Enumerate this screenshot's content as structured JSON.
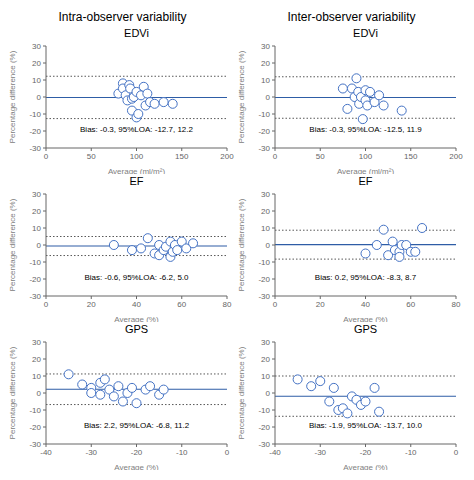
{
  "column_titles": [
    "Intra-observer variability",
    "Inter-observer variability"
  ],
  "chart_data": [
    {
      "type": "scatter",
      "title": "EDVi",
      "xlabel": "Average (ml/m²)",
      "ylabel": "Percentage difference (%)",
      "xlim": [
        0,
        200
      ],
      "ylim": [
        -30,
        30
      ],
      "xticks": [
        0,
        50,
        100,
        150,
        200
      ],
      "yticks": [
        -30,
        -20,
        -10,
        0,
        10,
        20,
        30
      ],
      "grid": false,
      "color": "#4472C4",
      "marker": "circle",
      "annotation": "Bias: -0.3, 95%LOA: -12.7, 12.2",
      "hlines": [
        {
          "value": -0.3,
          "color": "#2E5DA6",
          "line_style": "solid"
        },
        {
          "value": -12.7,
          "color": "#444444",
          "line_style": "dotted"
        },
        {
          "value": 12.2,
          "color": "#444444",
          "line_style": "dotted"
        }
      ],
      "x": [
        80,
        85,
        85,
        88,
        90,
        92,
        93,
        95,
        95,
        97,
        100,
        100,
        102,
        105,
        108,
        110,
        112,
        115,
        120,
        130,
        140
      ],
      "values": [
        2,
        8,
        5,
        1,
        -2,
        7,
        5,
        -1,
        -8,
        0,
        -12,
        3,
        -10,
        1,
        6,
        -5,
        2,
        -3,
        -4,
        -3,
        -4
      ]
    },
    {
      "type": "scatter",
      "title": "EDVi",
      "xlabel": "Average (ml/m²)",
      "ylabel": "Percentage difference (%)",
      "xlim": [
        0,
        200
      ],
      "ylim": [
        -30,
        30
      ],
      "xticks": [
        0,
        50,
        100,
        150,
        200
      ],
      "yticks": [
        -30,
        -20,
        -10,
        0,
        10,
        20,
        30
      ],
      "grid": false,
      "color": "#4472C4",
      "marker": "circle",
      "annotation": "Bias: -0.3, 95%LOA: -12.5, 11.9",
      "hlines": [
        {
          "value": -0.3,
          "color": "#2E5DA6",
          "line_style": "solid"
        },
        {
          "value": -12.5,
          "color": "#444444",
          "line_style": "dotted"
        },
        {
          "value": 11.9,
          "color": "#444444",
          "line_style": "dotted"
        }
      ],
      "x": [
        75,
        80,
        85,
        88,
        90,
        92,
        93,
        95,
        97,
        100,
        100,
        102,
        105,
        110,
        115,
        120,
        140
      ],
      "values": [
        5,
        -7,
        5,
        0,
        11,
        3,
        -4,
        0,
        -13,
        4,
        -2,
        -5,
        3,
        -3,
        1,
        -5,
        -8
      ]
    },
    {
      "type": "scatter",
      "title": "EF",
      "xlabel": "Average (%)",
      "ylabel": "Percentage difference (%)",
      "xlim": [
        0,
        80
      ],
      "ylim": [
        -30,
        30
      ],
      "xticks": [
        0,
        20,
        40,
        60,
        80
      ],
      "yticks": [
        -30,
        -20,
        -10,
        0,
        10,
        20,
        30
      ],
      "grid": false,
      "color": "#4472C4",
      "marker": "circle",
      "annotation": "Bias: -0.6, 95%LOA: -6.2, 5.0",
      "hlines": [
        {
          "value": -0.6,
          "color": "#2E5DA6",
          "line_style": "solid"
        },
        {
          "value": -6.2,
          "color": "#444444",
          "line_style": "dotted"
        },
        {
          "value": 5.0,
          "color": "#444444",
          "line_style": "dotted"
        }
      ],
      "x": [
        30,
        38,
        42,
        45,
        48,
        50,
        50,
        52,
        53,
        55,
        55,
        56,
        57,
        58,
        60,
        62,
        65
      ],
      "values": [
        0,
        -3,
        -2,
        4,
        -5,
        -6,
        0,
        -3,
        -1,
        -7,
        2,
        -4,
        0,
        -3,
        2,
        -2,
        1
      ]
    },
    {
      "type": "scatter",
      "title": "EF",
      "xlabel": "Average (%)",
      "ylabel": "Percentage difference (%)",
      "xlim": [
        0,
        80
      ],
      "ylim": [
        -30,
        30
      ],
      "xticks": [
        0,
        20,
        40,
        60,
        80
      ],
      "yticks": [
        -30,
        -20,
        -10,
        0,
        10,
        20,
        30
      ],
      "grid": false,
      "color": "#4472C4",
      "marker": "circle",
      "annotation": "Bias: 0.2, 95%LOA: -8.3, 8.7",
      "hlines": [
        {
          "value": 0.2,
          "color": "#2E5DA6",
          "line_style": "solid"
        },
        {
          "value": -8.3,
          "color": "#444444",
          "line_style": "dotted"
        },
        {
          "value": 8.7,
          "color": "#444444",
          "line_style": "dotted"
        }
      ],
      "x": [
        40,
        45,
        48,
        50,
        52,
        53,
        55,
        55,
        56,
        58,
        60,
        62,
        65
      ],
      "values": [
        -5,
        0,
        9,
        -6,
        2,
        -3,
        -4,
        -7,
        0,
        0,
        -4,
        -4,
        10
      ]
    },
    {
      "type": "scatter",
      "title": "GPS",
      "xlabel": "Average (%)",
      "ylabel": "Percentage difference (%)",
      "xlim": [
        -40,
        0
      ],
      "ylim": [
        -30,
        30
      ],
      "xticks": [
        -40,
        -30,
        -20,
        -10,
        0
      ],
      "yticks": [
        -30,
        -20,
        -10,
        0,
        10,
        20,
        30
      ],
      "grid": false,
      "color": "#4472C4",
      "marker": "circle",
      "annotation": "Bias: 2.2, 95%LOA: -6.8, 11.2",
      "hlines": [
        {
          "value": 2.2,
          "color": "#2E5DA6",
          "line_style": "solid"
        },
        {
          "value": -6.8,
          "color": "#444444",
          "line_style": "dotted"
        },
        {
          "value": 11.2,
          "color": "#444444",
          "line_style": "dotted"
        }
      ],
      "x": [
        -35,
        -32,
        -30,
        -30,
        -28,
        -28,
        -27,
        -26,
        -25,
        -24,
        -23,
        -22,
        -21,
        -20,
        -18,
        -17,
        -15,
        -14
      ],
      "values": [
        11,
        5,
        3,
        0,
        6,
        -1,
        8,
        2,
        -2,
        4,
        -5,
        0,
        3,
        -6,
        2,
        4,
        -1,
        2
      ]
    },
    {
      "type": "scatter",
      "title": "GPS",
      "xlabel": "Average (%)",
      "ylabel": "Percentage difference (%)",
      "xlim": [
        -40,
        0
      ],
      "ylim": [
        -30,
        30
      ],
      "xticks": [
        -40,
        -30,
        -20,
        -10,
        0
      ],
      "yticks": [
        -30,
        -20,
        -10,
        0,
        10,
        20,
        30
      ],
      "grid": false,
      "color": "#4472C4",
      "marker": "circle",
      "annotation": "Bias: -1.9, 95%LOA: -13.7, 10.0",
      "hlines": [
        {
          "value": -1.9,
          "color": "#2E5DA6",
          "line_style": "solid"
        },
        {
          "value": -13.7,
          "color": "#444444",
          "line_style": "dotted"
        },
        {
          "value": 10.0,
          "color": "#444444",
          "line_style": "dotted"
        }
      ],
      "x": [
        -35,
        -32,
        -30,
        -28,
        -27,
        -26,
        -25,
        -24,
        -23,
        -22,
        -21,
        -20,
        -18,
        -17
      ],
      "values": [
        8,
        4,
        7,
        -5,
        3,
        -10,
        -9,
        -12,
        -2,
        -4,
        -7,
        -5,
        3,
        -11
      ]
    }
  ]
}
